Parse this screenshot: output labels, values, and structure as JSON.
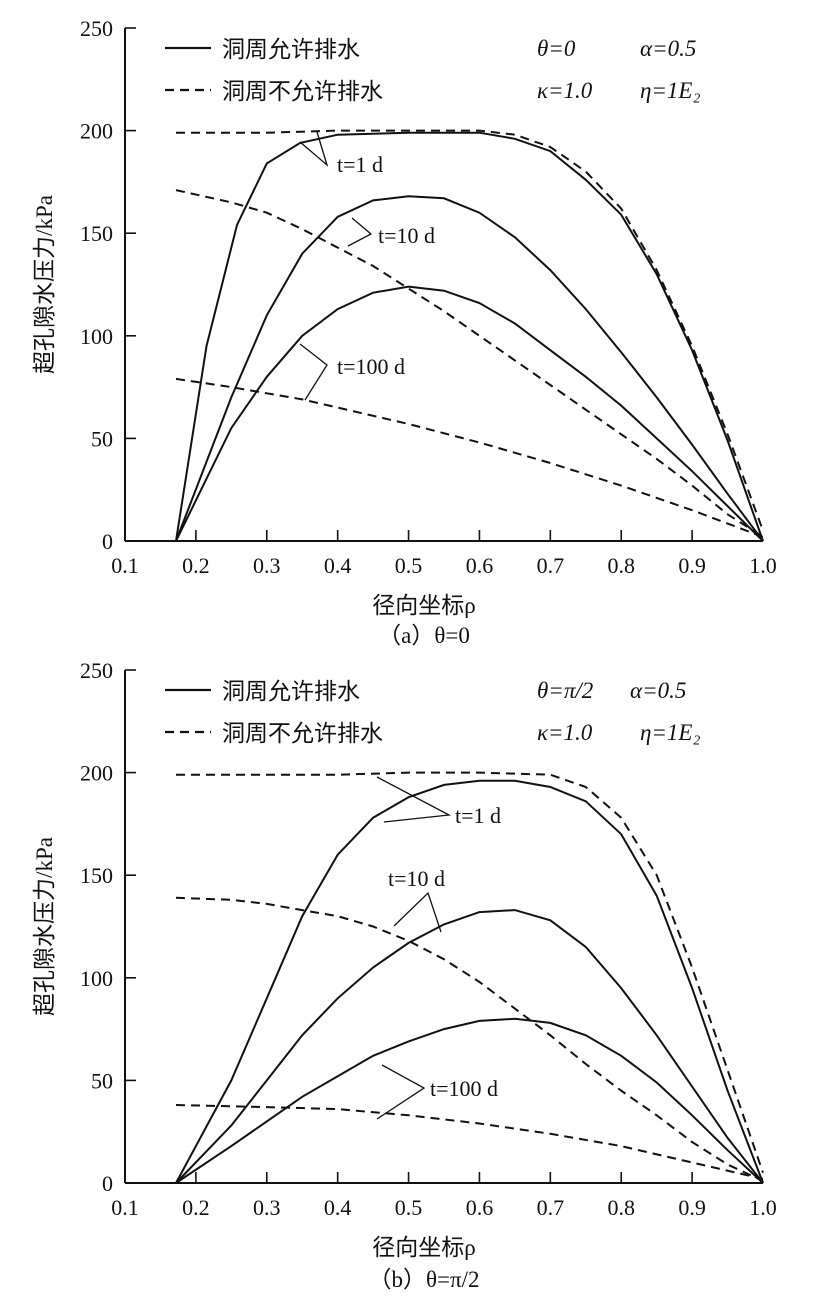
{
  "chart_data": [
    {
      "type": "line",
      "caption": "（a）θ=0",
      "xlabel": "径向坐标ρ",
      "ylabel": "超孔隙水压力/kPa",
      "xlim": [
        0.1,
        1.0
      ],
      "ylim": [
        0,
        250
      ],
      "xticks": [
        "0.1",
        "0.2",
        "0.3",
        "0.4",
        "0.5",
        "0.6",
        "0.7",
        "0.8",
        "0.9",
        "1.0"
      ],
      "yticks": [
        "0",
        "50",
        "100",
        "150",
        "200",
        "250"
      ],
      "grid": false,
      "legend": {
        "placement": "top-left",
        "entries": [
          {
            "label": "洞周允许排水",
            "style": "solid"
          },
          {
            "label": "洞周不允许排水",
            "style": "dashed"
          }
        ]
      },
      "params": [
        "θ=0",
        "α=0.5",
        "κ=1.0",
        "η=1E₂"
      ],
      "annotations": [
        "t=1 d",
        "t=10 d",
        "t=100 d"
      ],
      "series": [
        {
          "style": "solid",
          "group": "t=1 d",
          "x": [
            0.172,
            0.215,
            0.258,
            0.3,
            0.347,
            0.4,
            0.5,
            0.6,
            0.65,
            0.7,
            0.75,
            0.8,
            0.85,
            0.9,
            0.95,
            1.0
          ],
          "y": [
            0,
            95,
            154,
            184,
            194,
            198,
            199,
            199,
            196,
            190,
            176,
            159,
            130,
            93,
            49,
            0
          ]
        },
        {
          "style": "dashed",
          "group": "t=1 d",
          "x": [
            0.172,
            0.3,
            0.4,
            0.5,
            0.6,
            0.65,
            0.7,
            0.75,
            0.8,
            0.85,
            0.9,
            0.95,
            1.0
          ],
          "y": [
            199,
            199,
            200,
            200,
            200,
            198,
            192,
            180,
            162,
            132,
            95,
            52,
            5
          ]
        },
        {
          "style": "solid",
          "group": "t=10 d",
          "x": [
            0.172,
            0.25,
            0.3,
            0.35,
            0.4,
            0.45,
            0.5,
            0.55,
            0.6,
            0.65,
            0.7,
            0.75,
            0.8,
            0.85,
            0.9,
            0.95,
            1.0
          ],
          "y": [
            0,
            70,
            110,
            140,
            158,
            166,
            168,
            167,
            160,
            148,
            132,
            113,
            92,
            70,
            47,
            23,
            0
          ]
        },
        {
          "style": "dashed",
          "group": "t=10 d",
          "x": [
            0.172,
            0.25,
            0.3,
            0.35,
            0.4,
            0.45,
            0.5,
            0.55,
            0.6,
            0.65,
            0.7,
            0.75,
            0.8,
            0.85,
            0.9,
            0.95,
            1.0
          ],
          "y": [
            171,
            165,
            160,
            152,
            143,
            134,
            123,
            112,
            100,
            88,
            76,
            64,
            52,
            40,
            27,
            13,
            2
          ]
        },
        {
          "style": "solid",
          "group": "t=100 d",
          "x": [
            0.172,
            0.25,
            0.3,
            0.35,
            0.4,
            0.45,
            0.5,
            0.55,
            0.6,
            0.65,
            0.7,
            0.75,
            0.8,
            0.85,
            0.9,
            0.95,
            1.0
          ],
          "y": [
            0,
            55,
            80,
            100,
            113,
            121,
            124,
            122,
            116,
            106,
            93,
            80,
            66,
            50,
            34,
            17,
            0
          ]
        },
        {
          "style": "dashed",
          "group": "t=100 d",
          "x": [
            0.172,
            0.25,
            0.3,
            0.35,
            0.4,
            0.5,
            0.6,
            0.7,
            0.8,
            0.9,
            1.0
          ],
          "y": [
            79,
            75,
            72,
            69,
            65,
            57,
            48,
            38,
            27,
            15,
            2
          ]
        }
      ]
    },
    {
      "type": "line",
      "caption": "（b）θ=π/2",
      "xlabel": "径向坐标ρ",
      "ylabel": "超孔隙水压力/kPa",
      "xlim": [
        0.1,
        1.0
      ],
      "ylim": [
        0,
        250
      ],
      "xticks": [
        "0.1",
        "0.2",
        "0.3",
        "0.4",
        "0.5",
        "0.6",
        "0.7",
        "0.8",
        "0.9",
        "1.0"
      ],
      "yticks": [
        "0",
        "50",
        "100",
        "150",
        "200",
        "250"
      ],
      "grid": false,
      "legend": {
        "placement": "top-left",
        "entries": [
          {
            "label": "洞周允许排水",
            "style": "solid"
          },
          {
            "label": "洞周不允许排水",
            "style": "dashed"
          }
        ]
      },
      "params": [
        "θ=π/2",
        "α=0.5",
        "κ=1.0",
        "η=1E₂"
      ],
      "annotations": [
        "t=1 d",
        "t=10 d",
        "t=100 d"
      ],
      "series": [
        {
          "style": "solid",
          "group": "t=1 d",
          "x": [
            0.172,
            0.25,
            0.3,
            0.35,
            0.4,
            0.45,
            0.5,
            0.55,
            0.6,
            0.65,
            0.7,
            0.75,
            0.8,
            0.85,
            0.9,
            0.95,
            1.0
          ],
          "y": [
            0,
            50,
            90,
            130,
            160,
            178,
            188,
            194,
            196,
            196,
            193,
            186,
            170,
            140,
            95,
            45,
            0
          ]
        },
        {
          "style": "dashed",
          "group": "t=1 d",
          "x": [
            0.172,
            0.3,
            0.4,
            0.5,
            0.6,
            0.7,
            0.75,
            0.8,
            0.85,
            0.9,
            0.95,
            1.0
          ],
          "y": [
            199,
            199,
            199,
            200,
            200,
            199,
            193,
            178,
            150,
            105,
            55,
            5
          ]
        },
        {
          "style": "solid",
          "group": "t=10 d",
          "x": [
            0.172,
            0.25,
            0.3,
            0.35,
            0.4,
            0.45,
            0.5,
            0.55,
            0.6,
            0.65,
            0.7,
            0.75,
            0.8,
            0.85,
            0.9,
            0.95,
            1.0
          ],
          "y": [
            0,
            28,
            50,
            72,
            90,
            105,
            117,
            126,
            132,
            133,
            128,
            115,
            95,
            72,
            47,
            22,
            0
          ]
        },
        {
          "style": "dashed",
          "group": "t=10 d",
          "x": [
            0.172,
            0.25,
            0.3,
            0.35,
            0.4,
            0.45,
            0.5,
            0.55,
            0.6,
            0.65,
            0.7,
            0.75,
            0.8,
            0.85,
            0.9,
            0.95,
            1.0
          ],
          "y": [
            139,
            138,
            136,
            133,
            130,
            125,
            118,
            109,
            98,
            85,
            72,
            58,
            45,
            33,
            20,
            9,
            1
          ]
        },
        {
          "style": "solid",
          "group": "t=100 d",
          "x": [
            0.172,
            0.25,
            0.3,
            0.35,
            0.4,
            0.45,
            0.5,
            0.55,
            0.6,
            0.65,
            0.7,
            0.75,
            0.8,
            0.85,
            0.9,
            0.95,
            1.0
          ],
          "y": [
            0,
            18,
            30,
            42,
            52,
            62,
            69,
            75,
            79,
            80,
            78,
            72,
            62,
            49,
            33,
            16,
            0
          ]
        },
        {
          "style": "dashed",
          "group": "t=100 d",
          "x": [
            0.172,
            0.3,
            0.4,
            0.5,
            0.6,
            0.7,
            0.8,
            0.9,
            1.0
          ],
          "y": [
            38,
            37,
            36,
            33,
            29,
            24,
            18,
            10,
            2
          ]
        }
      ]
    }
  ]
}
